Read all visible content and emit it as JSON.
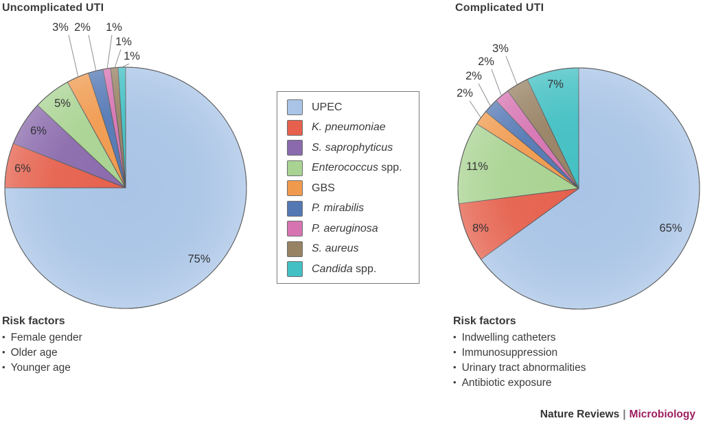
{
  "legend": {
    "items": [
      {
        "label": "UPEC",
        "italic": "",
        "roman": "UPEC",
        "color": "#a9c4e6"
      },
      {
        "label": "K. pneumoniae",
        "italic": "K. pneumoniae",
        "roman": "",
        "color": "#e5614d"
      },
      {
        "label": "S. saprophyticus",
        "italic": "S. saprophyticus",
        "roman": "",
        "color": "#8a6aac"
      },
      {
        "label": "Enterococcus spp.",
        "italic": "Enterococcus",
        "roman": " spp.",
        "color": "#a9d392"
      },
      {
        "label": "GBS",
        "italic": "",
        "roman": "GBS",
        "color": "#f09a4e"
      },
      {
        "label": "P. mirabilis",
        "italic": "P. mirabilis",
        "roman": "",
        "color": "#5478b4"
      },
      {
        "label": "P. aeruginosa",
        "italic": "P. aeruginosa",
        "roman": "",
        "color": "#d674b2"
      },
      {
        "label": "S. aureus",
        "italic": "S. aureus",
        "roman": "",
        "color": "#988264"
      },
      {
        "label": "Candida spp.",
        "italic": "Candida",
        "roman": " spp.",
        "color": "#43c0c3"
      }
    ]
  },
  "chart_data": [
    {
      "type": "pie",
      "title": "Uncomplicated UTI",
      "direction": "clockwise",
      "start_angle_deg": 0,
      "unit_suffix": "%",
      "categories": [
        "UPEC",
        "K. pneumoniae",
        "S. saprophyticus",
        "Enterococcus spp.",
        "GBS",
        "P. mirabilis",
        "P. aeruginosa",
        "S. aureus",
        "Candida spp."
      ],
      "values": [
        75,
        6,
        6,
        5,
        3,
        2,
        1,
        1,
        1
      ],
      "legend_position": "center-between-pies",
      "risk_factors": {
        "heading": "Risk factors",
        "items": [
          "Female gender",
          "Older age",
          "Younger age"
        ]
      }
    },
    {
      "type": "pie",
      "title": "Complicated UTI",
      "direction": "clockwise",
      "start_angle_deg": 0,
      "unit_suffix": "%",
      "categories": [
        "UPEC",
        "K. pneumoniae",
        "Enterococcus spp.",
        "GBS",
        "P. mirabilis",
        "P. aeruginosa",
        "S. aureus",
        "Candida spp."
      ],
      "values": [
        65,
        8,
        11,
        2,
        2,
        2,
        3,
        7
      ],
      "legend_position": "center-between-pies",
      "risk_factors": {
        "heading": "Risk factors",
        "items": [
          "Indwelling catheters",
          "Immunosuppression",
          "Urinary tract abnormalities",
          "Antibiotic exposure"
        ]
      }
    }
  ],
  "footer": {
    "brand": "Nature Reviews",
    "separator": "|",
    "journal": "Microbiology",
    "journal_color": "#9c1e5f"
  },
  "style_colors": {
    "slice_stroke": "#595a5c",
    "leader_line": "#8d8e90",
    "label_text": "#333336"
  }
}
